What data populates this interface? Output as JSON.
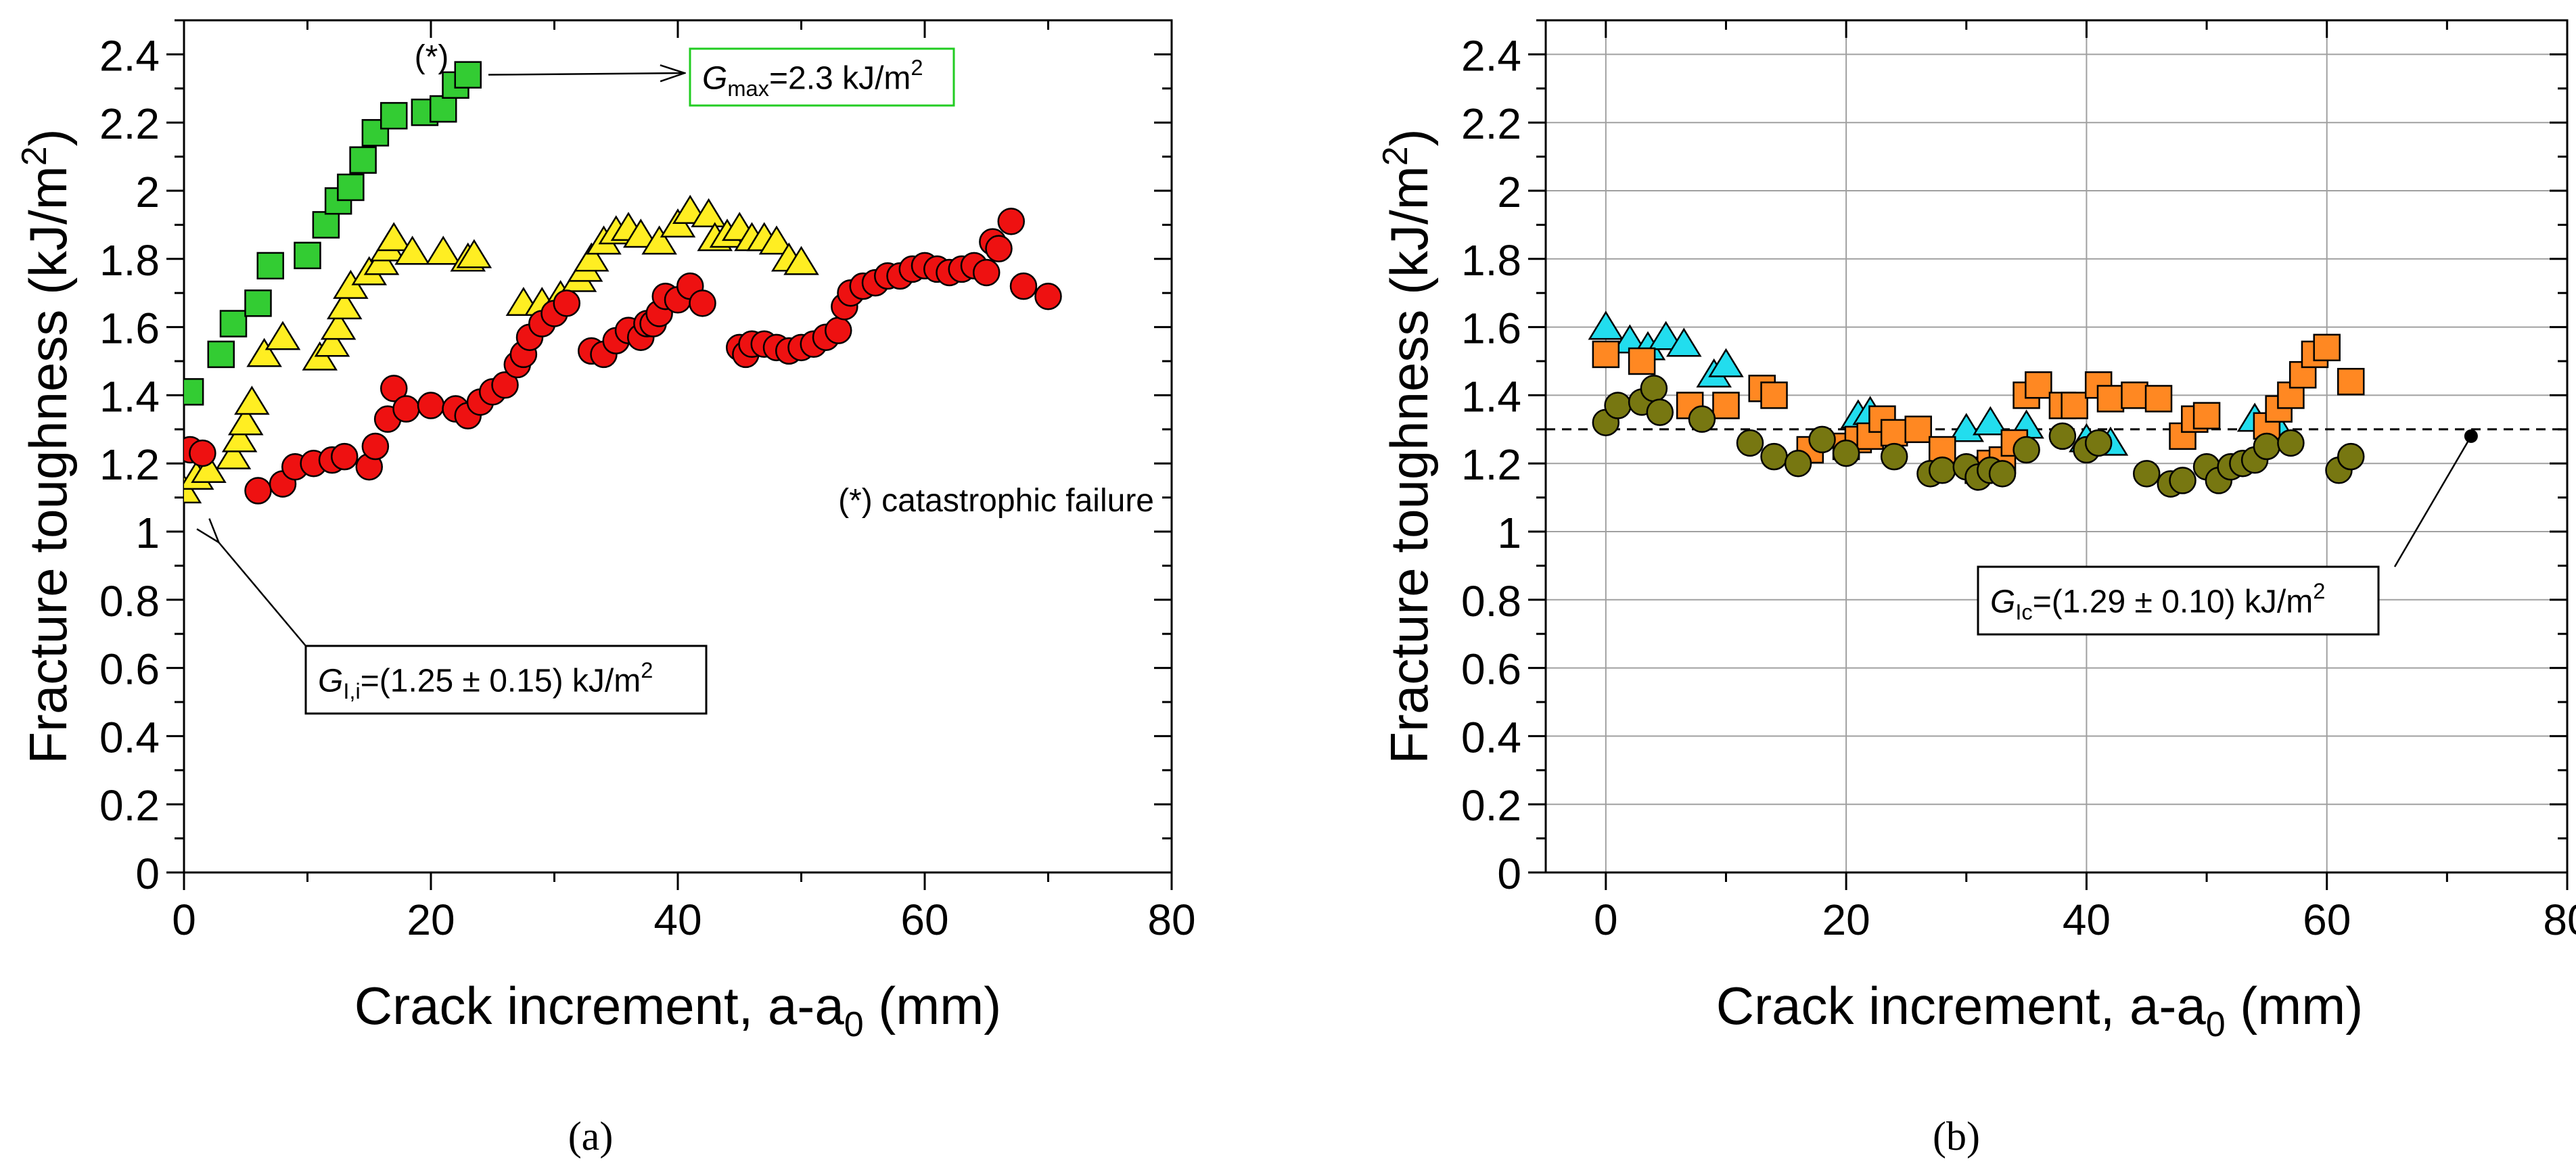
{
  "figure": {
    "panels": [
      "(a)",
      "(b)"
    ]
  },
  "chart_data": [
    {
      "type": "scatter",
      "panel_label": "(a)",
      "title": "",
      "xlabel": "Crack increment, a-a",
      "xlabel_sub": "0",
      "xlabel_unit": " (mm)",
      "ylabel": "Fracture toughness (kJ/m",
      "ylabel_sup": "2",
      "ylabel_end": ")",
      "xlim": [
        0,
        80
      ],
      "ylim": [
        0,
        2.5
      ],
      "xticks": [
        "0",
        "20",
        "40",
        "60",
        "80"
      ],
      "yticks": [
        "0",
        "0.2",
        "0.4",
        "0.6",
        "0.8",
        "1",
        "1.2",
        "1.4",
        "1.6",
        "1.8",
        "2",
        "2.2",
        "2.4"
      ],
      "grid": false,
      "series": [
        {
          "name": "green",
          "marker": "square",
          "color": "#33cc33",
          "x": [
            0.5,
            3,
            4,
            6,
            7,
            10,
            11.5,
            12.5,
            13.5,
            14.5,
            15.5,
            17,
            19.5,
            21,
            22,
            23
          ],
          "y": [
            1.41,
            1.52,
            1.61,
            1.67,
            1.78,
            1.81,
            1.9,
            1.97,
            2.01,
            2.09,
            2.17,
            2.22,
            2.23,
            2.24,
            2.31,
            2.34
          ]
        },
        {
          "name": "yellow",
          "marker": "triangle",
          "color": "#ffee22",
          "x": [
            0,
            1,
            2,
            4,
            4.5,
            5,
            5.5,
            6.5,
            8,
            11,
            12,
            12.5,
            13,
            13.5,
            15,
            16,
            16.5,
            17,
            18.5,
            21,
            23,
            23.5,
            27.5,
            29,
            30.5,
            32,
            32.5,
            33,
            34,
            35,
            36,
            37,
            38.5,
            40,
            41,
            42.5,
            43,
            44,
            45,
            46,
            47,
            48,
            49,
            50
          ],
          "y": [
            1.12,
            1.16,
            1.18,
            1.22,
            1.27,
            1.32,
            1.38,
            1.52,
            1.57,
            1.51,
            1.55,
            1.6,
            1.66,
            1.72,
            1.76,
            1.79,
            1.83,
            1.86,
            1.82,
            1.82,
            1.8,
            1.81,
            1.67,
            1.67,
            1.69,
            1.74,
            1.77,
            1.8,
            1.85,
            1.88,
            1.89,
            1.87,
            1.85,
            1.9,
            1.94,
            1.93,
            1.86,
            1.87,
            1.89,
            1.86,
            1.86,
            1.85,
            1.8,
            1.79
          ]
        },
        {
          "name": "red",
          "marker": "circle",
          "color": "#ee1111",
          "x": [
            0.5,
            1.5,
            6,
            8,
            9,
            10.5,
            12,
            13,
            15,
            15.5,
            16.5,
            17,
            18,
            20,
            22,
            23,
            24,
            25,
            26,
            27,
            27.5,
            28,
            29,
            30,
            31,
            33,
            34,
            35,
            36,
            37,
            37.5,
            38,
            38.5,
            39,
            40,
            41,
            42,
            45,
            45.5,
            46,
            47,
            48,
            49,
            50,
            51,
            52,
            53,
            53.5,
            54,
            55,
            56,
            57,
            58,
            59,
            60,
            61,
            62,
            63,
            64,
            65,
            65.5,
            66,
            67,
            68,
            70
          ],
          "y": [
            1.24,
            1.23,
            1.12,
            1.14,
            1.19,
            1.2,
            1.21,
            1.22,
            1.19,
            1.25,
            1.33,
            1.42,
            1.36,
            1.37,
            1.36,
            1.34,
            1.38,
            1.41,
            1.43,
            1.49,
            1.52,
            1.57,
            1.61,
            1.64,
            1.67,
            1.53,
            1.52,
            1.56,
            1.59,
            1.57,
            1.61,
            1.61,
            1.64,
            1.69,
            1.68,
            1.72,
            1.67,
            1.54,
            1.52,
            1.55,
            1.55,
            1.54,
            1.53,
            1.54,
            1.55,
            1.57,
            1.59,
            1.66,
            1.7,
            1.72,
            1.73,
            1.75,
            1.75,
            1.77,
            1.78,
            1.77,
            1.76,
            1.77,
            1.78,
            1.76,
            1.85,
            1.83,
            1.91,
            1.72,
            1.69
          ]
        }
      ],
      "annotations": [
        {
          "name": "gmax",
          "text_g": "G",
          "text_sub": "max",
          "text_val": "=2.3 kJ/m",
          "text_sup": "2",
          "box_color": "#22cc22",
          "point_x": 24,
          "point_y": 2.36
        },
        {
          "name": "gii",
          "text_g": "G",
          "text_sub": "I,i",
          "text_val": "=(1.25 ± 0.15) kJ/m",
          "text_sup": "2",
          "box_color": "#000000",
          "point_x": 1.5,
          "point_y": 1.0
        },
        {
          "name": "star",
          "text": "(*)",
          "color": "#1111dd"
        },
        {
          "name": "catastrophic",
          "text": "(*) catastrophic failure",
          "color": "#1111dd"
        }
      ]
    },
    {
      "type": "scatter",
      "panel_label": "(b)",
      "title": "",
      "xlabel": "Crack increment, a-a",
      "xlabel_sub": "0",
      "xlabel_unit": " (mm)",
      "ylabel": "Fracture toughness (kJ/m",
      "ylabel_sup": "2",
      "ylabel_end": ")",
      "xlim": [
        -5,
        80
      ],
      "ylim": [
        0,
        2.5
      ],
      "xticks": [
        "0",
        "20",
        "40",
        "60",
        "80"
      ],
      "yticks": [
        "0",
        "0.2",
        "0.4",
        "0.6",
        "0.8",
        "1",
        "1.2",
        "1.4",
        "1.6",
        "1.8",
        "2",
        "2.2",
        "2.4"
      ],
      "grid": true,
      "reference_line": {
        "y": 1.3,
        "style": "dashed",
        "end_x": 72
      },
      "series": [
        {
          "name": "cyan",
          "marker": "triangle",
          "color": "#22ddee",
          "x": [
            0,
            2,
            3.5,
            5,
            6.5,
            9,
            10,
            21,
            22,
            30,
            32,
            35,
            40,
            42,
            54,
            56
          ],
          "y": [
            1.6,
            1.56,
            1.54,
            1.57,
            1.55,
            1.46,
            1.49,
            1.34,
            1.35,
            1.3,
            1.32,
            1.31,
            1.27,
            1.26,
            1.33,
            1.3
          ]
        },
        {
          "name": "orange",
          "marker": "square",
          "color": "#ff8822",
          "x": [
            0,
            3,
            7,
            10,
            13,
            14,
            17,
            20,
            21,
            22,
            23,
            24,
            26,
            28,
            31,
            32,
            33,
            34,
            35,
            36,
            38,
            39,
            41,
            42,
            44,
            46,
            48,
            49,
            50,
            55,
            56,
            57,
            58,
            59,
            60,
            62
          ],
          "y": [
            1.52,
            1.5,
            1.37,
            1.37,
            1.42,
            1.4,
            1.24,
            1.25,
            1.27,
            1.28,
            1.33,
            1.29,
            1.3,
            1.24,
            1.18,
            1.2,
            1.21,
            1.26,
            1.4,
            1.43,
            1.37,
            1.37,
            1.43,
            1.39,
            1.4,
            1.39,
            1.28,
            1.33,
            1.34,
            1.31,
            1.36,
            1.4,
            1.46,
            1.52,
            1.54,
            1.44
          ]
        },
        {
          "name": "olive",
          "marker": "circle",
          "color": "#777711",
          "x": [
            0,
            1,
            3,
            4,
            4.5,
            8,
            12,
            14,
            16,
            18,
            20,
            24,
            27,
            28,
            30,
            31,
            32,
            33,
            35,
            38,
            40,
            41,
            45,
            47,
            48,
            50,
            51,
            52,
            53,
            54,
            55,
            57,
            61,
            62
          ],
          "y": [
            1.32,
            1.37,
            1.38,
            1.42,
            1.35,
            1.33,
            1.26,
            1.22,
            1.2,
            1.27,
            1.23,
            1.22,
            1.17,
            1.18,
            1.19,
            1.16,
            1.18,
            1.17,
            1.24,
            1.28,
            1.24,
            1.26,
            1.17,
            1.14,
            1.15,
            1.19,
            1.15,
            1.19,
            1.2,
            1.21,
            1.25,
            1.26,
            1.18,
            1.22
          ]
        }
      ],
      "annotations": [
        {
          "name": "gic",
          "text_g": "G",
          "text_sub": "Ic",
          "text_val": "=(1.29 ± 0.10) kJ/m",
          "text_sup": "2",
          "box_color": "#000000",
          "point_x": 72,
          "point_y": 1.28
        }
      ]
    }
  ]
}
